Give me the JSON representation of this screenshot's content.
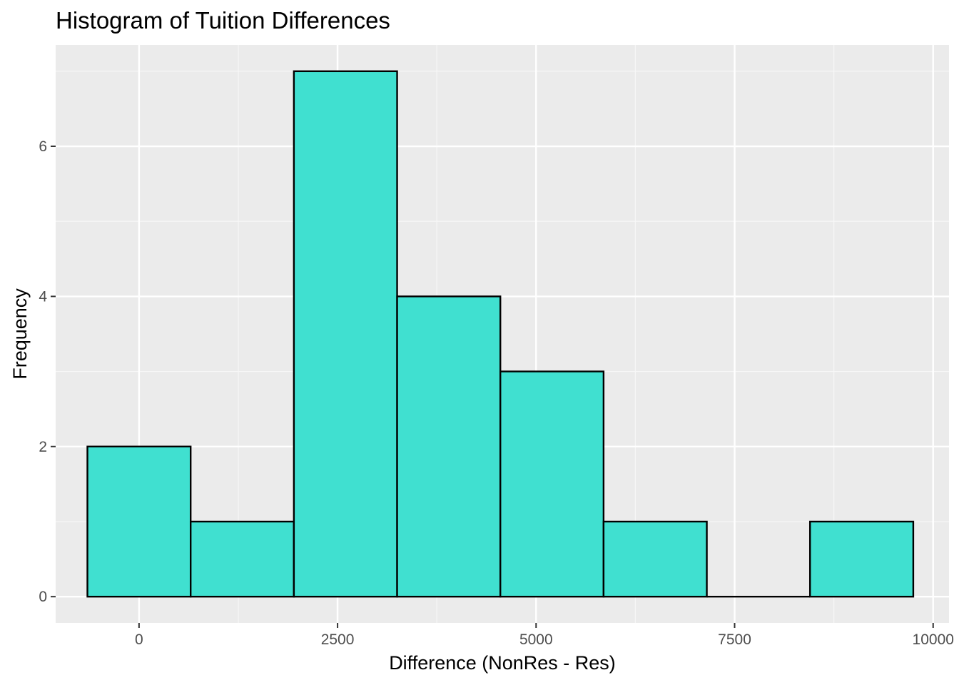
{
  "chart_data": {
    "type": "bar",
    "title": "Histogram of Tuition Differences",
    "xlabel": "Difference (NonRes - Res)",
    "ylabel": "Frequency",
    "xlim": [
      -1050,
      10200
    ],
    "ylim": [
      -0.35,
      7.35
    ],
    "x_ticks": [
      0,
      2500,
      5000,
      7500,
      10000
    ],
    "x_tick_labels": [
      "0",
      "2500",
      "5000",
      "7500",
      "10000"
    ],
    "x_minor_ticks": [
      1250,
      3750,
      6250,
      8750
    ],
    "y_ticks": [
      0,
      2,
      4,
      6
    ],
    "y_tick_labels": [
      "0",
      "2",
      "4",
      "6"
    ],
    "y_minor_ticks": [
      1,
      3,
      5,
      7
    ],
    "bins": [
      {
        "x0": -650,
        "x1": 650,
        "count": 2
      },
      {
        "x0": 650,
        "x1": 1950,
        "count": 1
      },
      {
        "x0": 1950,
        "x1": 3250,
        "count": 7
      },
      {
        "x0": 3250,
        "x1": 4550,
        "count": 4
      },
      {
        "x0": 4550,
        "x1": 5850,
        "count": 3
      },
      {
        "x0": 5850,
        "x1": 7150,
        "count": 1
      },
      {
        "x0": 7150,
        "x1": 8450,
        "count": 0
      },
      {
        "x0": 8450,
        "x1": 9750,
        "count": 1
      }
    ],
    "grid": true,
    "colors": {
      "panel_background": "#ebebeb",
      "grid_major": "#ffffff",
      "grid_minor": "#f7f7f7",
      "bar_fill": "#40e0d0",
      "bar_outline": "#000000"
    }
  }
}
